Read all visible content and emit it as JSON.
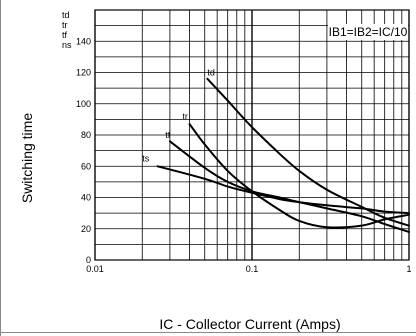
{
  "chart_data": {
    "type": "line",
    "title": "",
    "xlabel": "IC - Collector Current (Amps)",
    "ylabel": "Switching time",
    "unit_lines": [
      "td",
      "tr",
      "tf",
      "ns"
    ],
    "condition": "IB1=IB2=IC/10",
    "x_scale": "log",
    "xlim": [
      0.01,
      1
    ],
    "ylim": [
      0,
      160
    ],
    "x_ticks": [
      {
        "value": 0.01,
        "label": "0.01"
      },
      {
        "value": 0.1,
        "label": "0.1"
      },
      {
        "value": 1,
        "label": "1"
      }
    ],
    "y_ticks": [
      {
        "value": 0,
        "label": "0"
      },
      {
        "value": 20,
        "label": "20"
      },
      {
        "value": 40,
        "label": "40"
      },
      {
        "value": 60,
        "label": "60"
      },
      {
        "value": 80,
        "label": "80"
      },
      {
        "value": 100,
        "label": "100"
      },
      {
        "value": 120,
        "label": "120"
      },
      {
        "value": 140,
        "label": "140"
      }
    ],
    "grid": true,
    "series": [
      {
        "name": "td",
        "points": [
          [
            0.052,
            116
          ],
          [
            0.07,
            102
          ],
          [
            0.1,
            85
          ],
          [
            0.15,
            68
          ],
          [
            0.2,
            57
          ],
          [
            0.3,
            45
          ],
          [
            0.5,
            34
          ],
          [
            0.7,
            27
          ],
          [
            1.0,
            22
          ]
        ]
      },
      {
        "name": "tr",
        "points": [
          [
            0.04,
            87
          ],
          [
            0.05,
            74
          ],
          [
            0.07,
            57
          ],
          [
            0.1,
            44
          ],
          [
            0.15,
            32
          ],
          [
            0.2,
            25
          ],
          [
            0.3,
            21
          ],
          [
            0.5,
            22
          ],
          [
            0.7,
            26
          ],
          [
            1.0,
            29
          ]
        ]
      },
      {
        "name": "tf",
        "points": [
          [
            0.03,
            76
          ],
          [
            0.05,
            59
          ],
          [
            0.07,
            50
          ],
          [
            0.1,
            44
          ],
          [
            0.15,
            40
          ],
          [
            0.2,
            37
          ],
          [
            0.3,
            33
          ],
          [
            0.5,
            28
          ],
          [
            0.7,
            23
          ],
          [
            1.0,
            18
          ]
        ]
      },
      {
        "name": "ts",
        "points": [
          [
            0.025,
            60
          ],
          [
            0.05,
            52
          ],
          [
            0.07,
            47
          ],
          [
            0.1,
            43
          ],
          [
            0.15,
            39
          ],
          [
            0.2,
            37
          ],
          [
            0.3,
            35
          ],
          [
            0.5,
            33
          ],
          [
            0.7,
            31
          ],
          [
            1.0,
            30
          ]
        ]
      }
    ],
    "curve_labels": [
      {
        "text": "td",
        "x": 0.052,
        "y": 118
      },
      {
        "text": "tr",
        "x": 0.036,
        "y": 90
      },
      {
        "text": "tf",
        "x": 0.028,
        "y": 78
      },
      {
        "text": "ts",
        "x": 0.02,
        "y": 63
      }
    ],
    "line_color": "#000000",
    "grid_color": "#000000"
  }
}
